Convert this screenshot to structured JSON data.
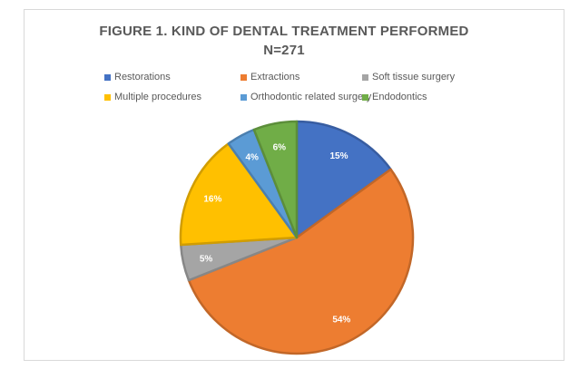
{
  "chart_data": {
    "type": "pie",
    "title": "FIGURE 1. KIND OF DENTAL TREATMENT PERFORMED",
    "subtitle": "N=271",
    "legend_position": "top",
    "slices": [
      {
        "name": "Restorations",
        "value": 15,
        "label": "15%",
        "color": "#4472c4"
      },
      {
        "name": "Extractions",
        "value": 54,
        "label": "54%",
        "color": "#ed7d31"
      },
      {
        "name": "Soft tissue surgery",
        "value": 5,
        "label": "5%",
        "color": "#a5a5a5"
      },
      {
        "name": "Multiple procedures",
        "value": 16,
        "label": "16%",
        "color": "#ffc000"
      },
      {
        "name": "Orthodontic related surgery",
        "value": 4,
        "label": "4%",
        "color": "#5b9bd5"
      },
      {
        "name": "Endodontics",
        "value": 6,
        "label": "6%",
        "color": "#70ad47"
      }
    ]
  }
}
